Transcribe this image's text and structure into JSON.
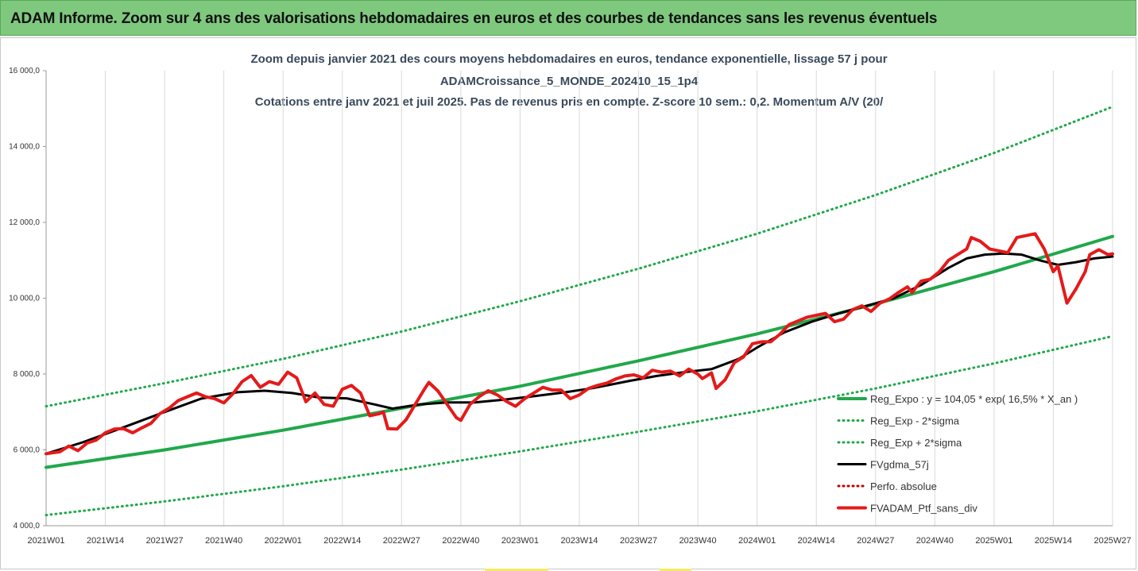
{
  "banner": {
    "title": "ADAM Informe. Zoom sur 4 ans des valorisations hebdomadaires en euros et des courbes de tendances sans les revenus éventuels"
  },
  "colors": {
    "banner_bg": "#7fc97f",
    "trend": "#21a84a",
    "band": "#21a84a",
    "smoothed": "#000000",
    "absolute": "#c00000",
    "portfolio": "#e41a1a"
  },
  "chart_data": {
    "type": "line",
    "title_lines": [
      "Zoom depuis janvier 2021 des cours moyens hebdomadaires  en euros, tendance exponentielle, lissage 57 j pour",
      "ADAMCroissance_5_MONDE_202410_15_1p4",
      "Cotations entre janv 2021 et juil 2025. Pas de revenus pris en compte. Z-score 10 sem.: 0,2. Momentum A/V (20/"
    ],
    "xlabel": "",
    "ylabel": "",
    "ylim": [
      4000,
      16000
    ],
    "yticks": [
      4000,
      6000,
      8000,
      10000,
      12000,
      14000,
      16000
    ],
    "ytick_labels": [
      "4 000,0",
      "6 000,0",
      "8 000,0",
      "10 000,0",
      "12 000,0",
      "14 000,0",
      "16 000,0"
    ],
    "x_index_range": [
      0,
      234
    ],
    "xticks": [
      {
        "i": 0,
        "label": "2021W01"
      },
      {
        "i": 13,
        "label": "2021W14"
      },
      {
        "i": 26,
        "label": "2021W27"
      },
      {
        "i": 39,
        "label": "2021W40"
      },
      {
        "i": 52,
        "label": "2022W01"
      },
      {
        "i": 65,
        "label": "2022W14"
      },
      {
        "i": 78,
        "label": "2022W27"
      },
      {
        "i": 91,
        "label": "2022W40"
      },
      {
        "i": 104,
        "label": "2023W01"
      },
      {
        "i": 117,
        "label": "2023W14"
      },
      {
        "i": 130,
        "label": "2023W27"
      },
      {
        "i": 143,
        "label": "2023W40"
      },
      {
        "i": 156,
        "label": "2024W01"
      },
      {
        "i": 169,
        "label": "2024W14"
      },
      {
        "i": 182,
        "label": "2024W27"
      },
      {
        "i": 195,
        "label": "2024W40"
      },
      {
        "i": 208,
        "label": "2025W01"
      },
      {
        "i": 221,
        "label": "2025W14"
      },
      {
        "i": 234,
        "label": "2025W27"
      }
    ],
    "grid": "vertical",
    "legend_position": "bottom-right",
    "series": [
      {
        "name": "Reg_Expo : y = 104,05 * exp( 16,5% *  X_an )",
        "style": "solid",
        "color": "#21a84a",
        "width": 4,
        "points": [
          [
            0,
            5540
          ],
          [
            26,
            6000
          ],
          [
            52,
            6520
          ],
          [
            78,
            7100
          ],
          [
            104,
            7680
          ],
          [
            130,
            8350
          ],
          [
            156,
            9060
          ],
          [
            182,
            9850
          ],
          [
            208,
            10700
          ],
          [
            234,
            11630
          ]
        ]
      },
      {
        "name": "Reg_Exp - 2*sigma",
        "style": "dotted",
        "color": "#21a84a",
        "width": 3,
        "points": [
          [
            0,
            4280
          ],
          [
            26,
            4640
          ],
          [
            52,
            5040
          ],
          [
            78,
            5480
          ],
          [
            104,
            5960
          ],
          [
            130,
            6480
          ],
          [
            156,
            7020
          ],
          [
            182,
            7620
          ],
          [
            208,
            8280
          ],
          [
            234,
            9000
          ]
        ]
      },
      {
        "name": "Reg_Exp + 2*sigma",
        "style": "dotted",
        "color": "#21a84a",
        "width": 3,
        "points": [
          [
            0,
            7150
          ],
          [
            26,
            7760
          ],
          [
            52,
            8400
          ],
          [
            78,
            9120
          ],
          [
            104,
            9920
          ],
          [
            130,
            10780
          ],
          [
            156,
            11700
          ],
          [
            182,
            12720
          ],
          [
            208,
            13830
          ],
          [
            234,
            15050
          ]
        ]
      },
      {
        "name": "FVgdma_57j",
        "style": "solid",
        "color": "#000000",
        "width": 3,
        "points": [
          [
            0,
            5900
          ],
          [
            8,
            6200
          ],
          [
            16,
            6550
          ],
          [
            26,
            7000
          ],
          [
            34,
            7350
          ],
          [
            42,
            7520
          ],
          [
            48,
            7560
          ],
          [
            54,
            7500
          ],
          [
            60,
            7380
          ],
          [
            66,
            7360
          ],
          [
            72,
            7200
          ],
          [
            76,
            7090
          ],
          [
            82,
            7200
          ],
          [
            88,
            7250
          ],
          [
            94,
            7250
          ],
          [
            100,
            7320
          ],
          [
            106,
            7400
          ],
          [
            114,
            7520
          ],
          [
            120,
            7630
          ],
          [
            128,
            7820
          ],
          [
            134,
            7950
          ],
          [
            140,
            8050
          ],
          [
            146,
            8130
          ],
          [
            152,
            8400
          ],
          [
            156,
            8700
          ],
          [
            162,
            9100
          ],
          [
            168,
            9380
          ],
          [
            174,
            9600
          ],
          [
            180,
            9800
          ],
          [
            186,
            10000
          ],
          [
            192,
            10350
          ],
          [
            198,
            10800
          ],
          [
            202,
            11050
          ],
          [
            206,
            11150
          ],
          [
            210,
            11180
          ],
          [
            214,
            11150
          ],
          [
            218,
            11000
          ],
          [
            222,
            10880
          ],
          [
            226,
            10950
          ],
          [
            230,
            11050
          ],
          [
            234,
            11100
          ]
        ]
      },
      {
        "name": "Perfo. absolue",
        "style": "dotted",
        "color": "#c00000",
        "width": 3,
        "points": []
      },
      {
        "name": "FVADAM_Ptf_sans_div",
        "style": "solid",
        "color": "#e41a1a",
        "width": 4,
        "points": [
          [
            0,
            5900
          ],
          [
            3,
            5950
          ],
          [
            5,
            6100
          ],
          [
            7,
            5980
          ],
          [
            9,
            6180
          ],
          [
            11,
            6260
          ],
          [
            13,
            6450
          ],
          [
            15,
            6550
          ],
          [
            17,
            6560
          ],
          [
            19,
            6450
          ],
          [
            21,
            6580
          ],
          [
            23,
            6700
          ],
          [
            25,
            6960
          ],
          [
            27,
            7100
          ],
          [
            29,
            7300
          ],
          [
            31,
            7400
          ],
          [
            33,
            7500
          ],
          [
            35,
            7400
          ],
          [
            37,
            7350
          ],
          [
            39,
            7240
          ],
          [
            41,
            7480
          ],
          [
            43,
            7800
          ],
          [
            45,
            7960
          ],
          [
            47,
            7650
          ],
          [
            49,
            7800
          ],
          [
            51,
            7730
          ],
          [
            53,
            8050
          ],
          [
            55,
            7900
          ],
          [
            57,
            7270
          ],
          [
            59,
            7500
          ],
          [
            61,
            7200
          ],
          [
            63,
            7150
          ],
          [
            65,
            7600
          ],
          [
            67,
            7700
          ],
          [
            69,
            7500
          ],
          [
            71,
            6900
          ],
          [
            73,
            6950
          ],
          [
            74,
            7000
          ],
          [
            75,
            6560
          ],
          [
            77,
            6550
          ],
          [
            79,
            6800
          ],
          [
            81,
            7200
          ],
          [
            83,
            7600
          ],
          [
            84,
            7780
          ],
          [
            86,
            7550
          ],
          [
            88,
            7200
          ],
          [
            90,
            6850
          ],
          [
            91,
            6780
          ],
          [
            93,
            7200
          ],
          [
            95,
            7400
          ],
          [
            97,
            7560
          ],
          [
            99,
            7450
          ],
          [
            101,
            7280
          ],
          [
            103,
            7150
          ],
          [
            105,
            7350
          ],
          [
            107,
            7500
          ],
          [
            109,
            7650
          ],
          [
            111,
            7580
          ],
          [
            113,
            7580
          ],
          [
            115,
            7350
          ],
          [
            117,
            7450
          ],
          [
            119,
            7620
          ],
          [
            121,
            7700
          ],
          [
            123,
            7760
          ],
          [
            125,
            7870
          ],
          [
            127,
            7950
          ],
          [
            129,
            7980
          ],
          [
            131,
            7900
          ],
          [
            133,
            8100
          ],
          [
            135,
            8050
          ],
          [
            137,
            8080
          ],
          [
            139,
            7950
          ],
          [
            141,
            8130
          ],
          [
            143,
            8000
          ],
          [
            144,
            7880
          ],
          [
            146,
            8030
          ],
          [
            147,
            7620
          ],
          [
            149,
            7850
          ],
          [
            151,
            8300
          ],
          [
            153,
            8450
          ],
          [
            155,
            8800
          ],
          [
            157,
            8850
          ],
          [
            159,
            8850
          ],
          [
            161,
            9050
          ],
          [
            163,
            9300
          ],
          [
            165,
            9400
          ],
          [
            167,
            9500
          ],
          [
            169,
            9550
          ],
          [
            171,
            9600
          ],
          [
            173,
            9380
          ],
          [
            175,
            9450
          ],
          [
            177,
            9700
          ],
          [
            179,
            9800
          ],
          [
            181,
            9650
          ],
          [
            183,
            9870
          ],
          [
            185,
            9980
          ],
          [
            187,
            10150
          ],
          [
            189,
            10300
          ],
          [
            190,
            10150
          ],
          [
            192,
            10450
          ],
          [
            194,
            10500
          ],
          [
            196,
            10700
          ],
          [
            198,
            11000
          ],
          [
            200,
            11150
          ],
          [
            202,
            11300
          ],
          [
            203,
            11600
          ],
          [
            205,
            11500
          ],
          [
            207,
            11300
          ],
          [
            209,
            11250
          ],
          [
            211,
            11200
          ],
          [
            213,
            11600
          ],
          [
            215,
            11650
          ],
          [
            217,
            11700
          ],
          [
            219,
            11300
          ],
          [
            221,
            10700
          ],
          [
            222,
            10850
          ],
          [
            224,
            9870
          ],
          [
            226,
            10250
          ],
          [
            228,
            10700
          ],
          [
            229,
            11150
          ],
          [
            231,
            11280
          ],
          [
            233,
            11150
          ],
          [
            234,
            11170
          ]
        ]
      }
    ]
  }
}
